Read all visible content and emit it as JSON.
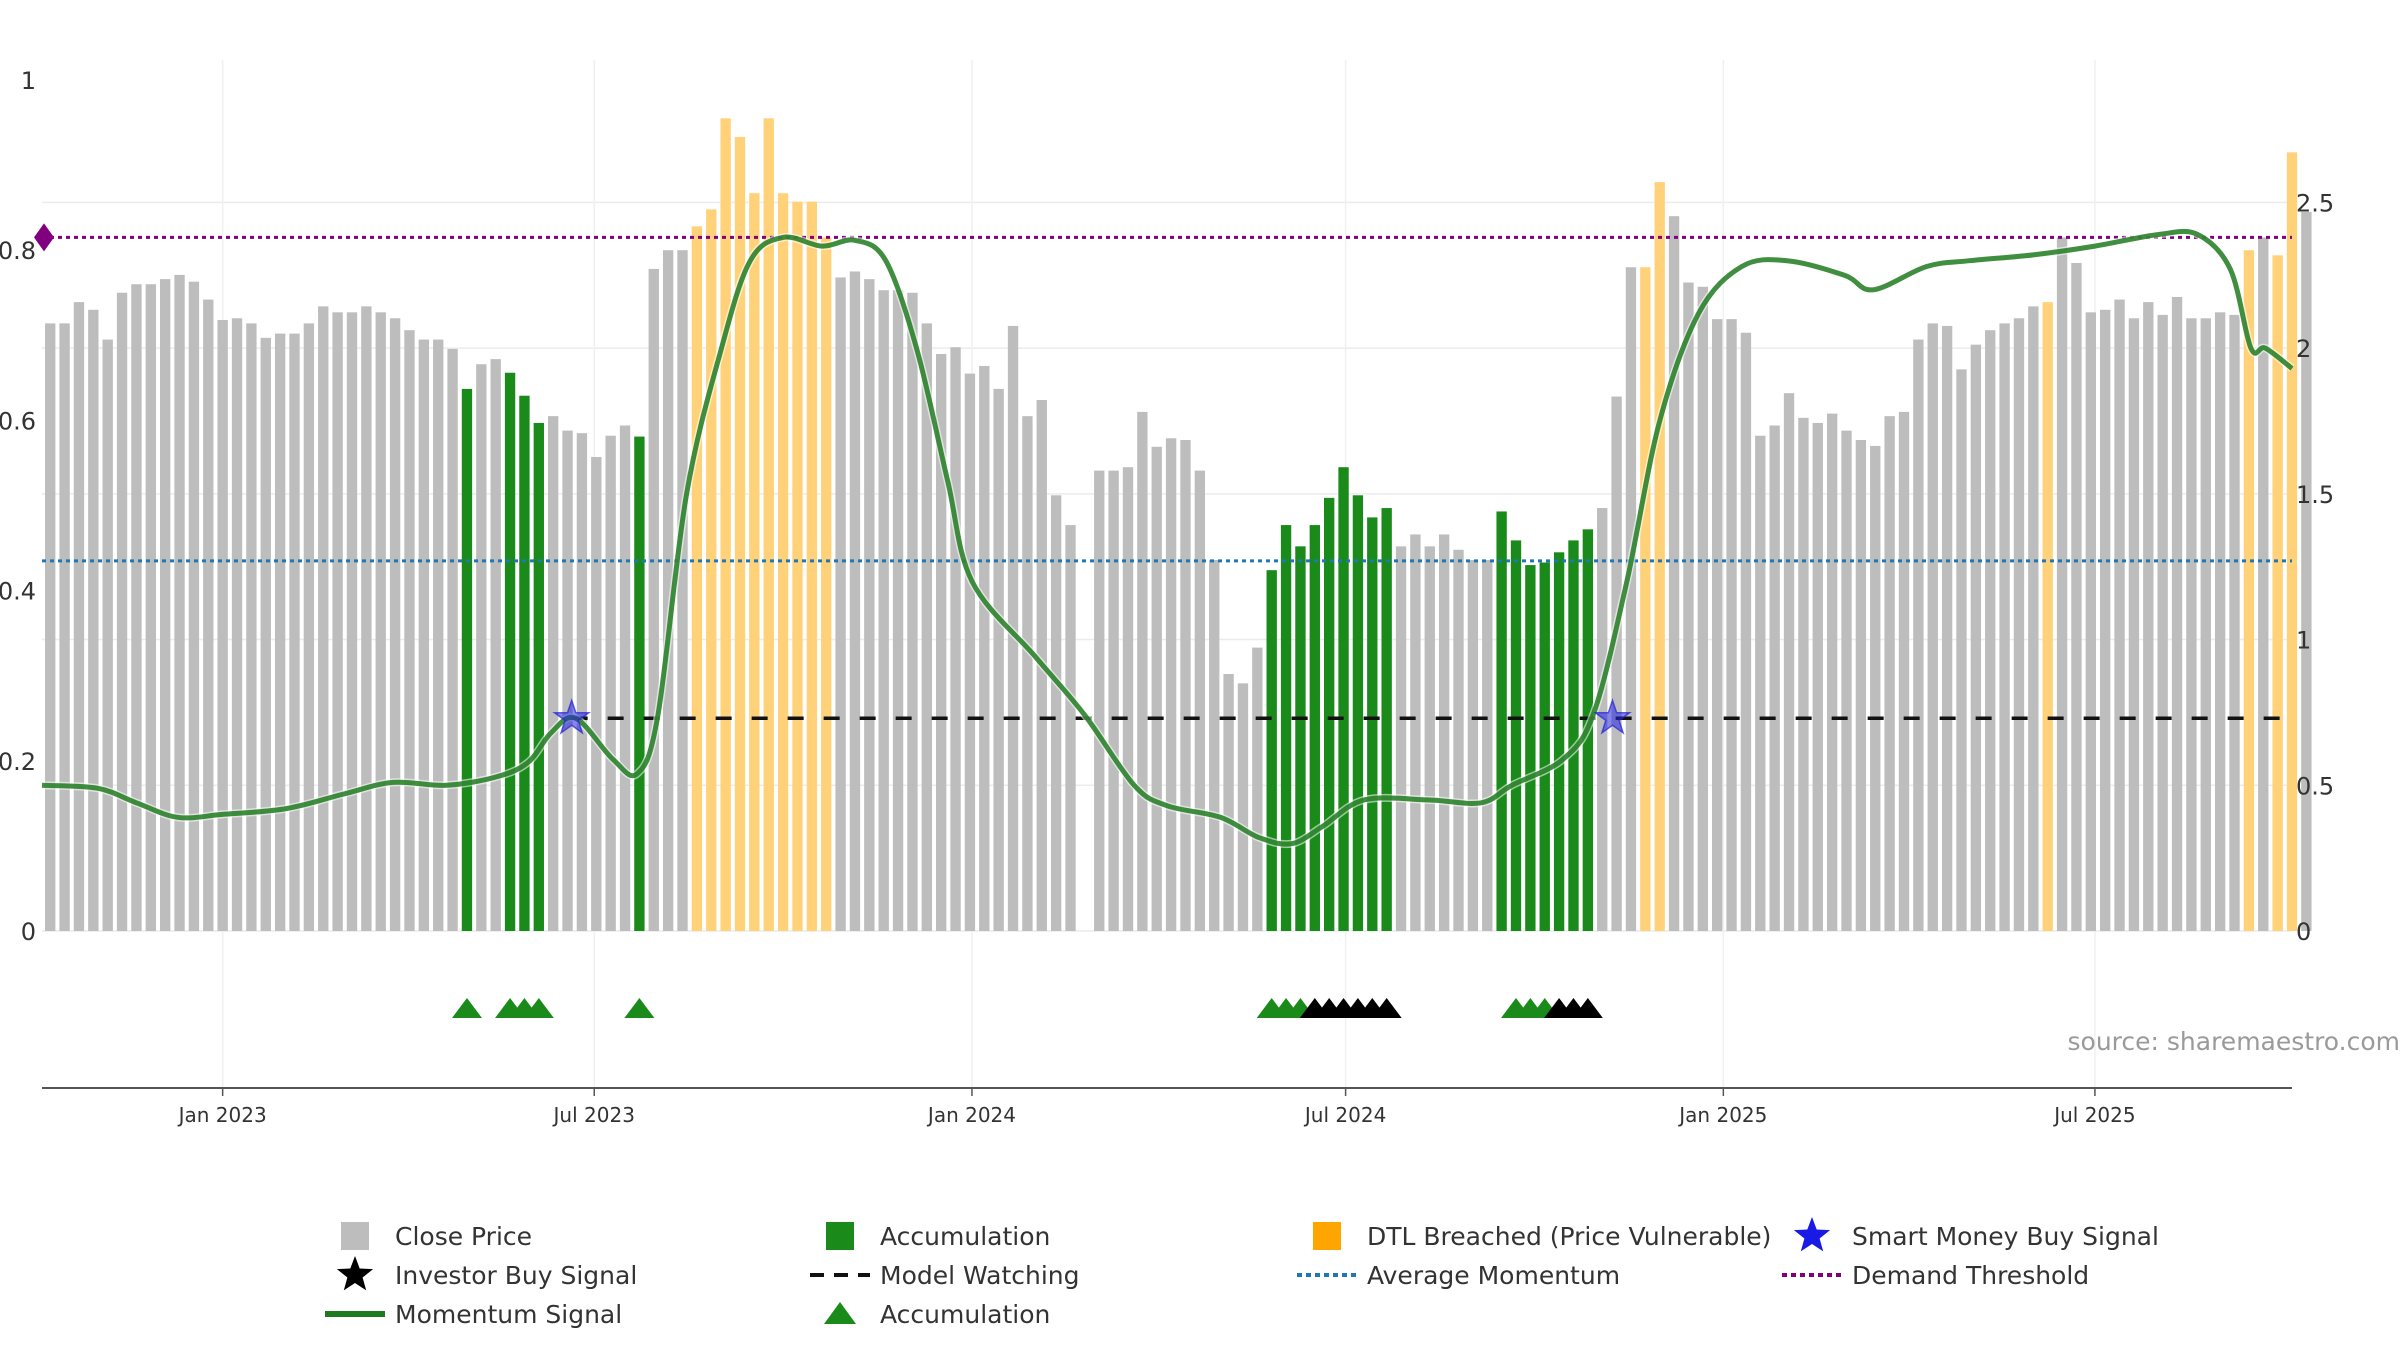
{
  "chart_data": {
    "type": "bar",
    "source_label": "source: sharemaestro.com",
    "left_axis": {
      "ylim": [
        0,
        1
      ],
      "ticks": [
        "0",
        "0.2",
        "0.4",
        "0.6",
        "0.8",
        "1"
      ]
    },
    "right_axis": {
      "ylim": [
        0,
        2.92
      ],
      "ticks": [
        "0",
        "0.5",
        "1",
        "1.5",
        "2",
        "2.5"
      ]
    },
    "x_axis": {
      "start_date": "2022-10-05",
      "end_date": "2025-10-05",
      "tick_labels": [
        {
          "date": "2023-01-01",
          "label": "Jan 2023"
        },
        {
          "date": "2023-07-01",
          "label": "Jul 2023"
        },
        {
          "date": "2024-01-01",
          "label": "Jan 2024"
        },
        {
          "date": "2024-07-01",
          "label": "Jul 2024"
        },
        {
          "date": "2025-01-01",
          "label": "Jan 2025"
        },
        {
          "date": "2025-07-01",
          "label": "Jul 2025"
        }
      ]
    },
    "close_price": {
      "name": "Close Price",
      "start_date": "2022-10-09",
      "interval_days": 7,
      "values": [
        0.714,
        0.714,
        0.739,
        0.73,
        0.695,
        0.75,
        0.76,
        0.76,
        0.766,
        0.771,
        0.763,
        0.742,
        0.718,
        0.72,
        0.714,
        0.697,
        0.702,
        0.702,
        0.714,
        0.734,
        0.727,
        0.727,
        0.734,
        0.727,
        0.72,
        0.706,
        0.695,
        0.695,
        0.684,
        0.637,
        0.666,
        0.672,
        0.656,
        0.629,
        0.597,
        0.605,
        0.588,
        0.585,
        0.557,
        0.582,
        0.594,
        0.581,
        0.778,
        0.8,
        0.8,
        0.828,
        0.848,
        0.955,
        0.933,
        0.867,
        0.955,
        0.867,
        0.857,
        0.857,
        0.815,
        0.768,
        0.775,
        0.766,
        0.753,
        0.753,
        0.75,
        0.714,
        0.678,
        0.686,
        0.655,
        0.664,
        0.637,
        0.711,
        0.605,
        0.624,
        0.512,
        0.477,
        0,
        0.541,
        0.541,
        0.545,
        0.61,
        0.569,
        0.579,
        0.577,
        0.541,
        0.436,
        0.302,
        0.291,
        0.333,
        0.424,
        0.477,
        0.452,
        0.477,
        0.509,
        0.545,
        0.512,
        0.486,
        0.497,
        0.452,
        0.466,
        0.452,
        0.466,
        0.448,
        0.436,
        0.436,
        0.493,
        0.459,
        0.43,
        0.433,
        0.445,
        0.459,
        0.472,
        0.497,
        0.628,
        0.78,
        0.78,
        0.88,
        0.84,
        0.762,
        0.757,
        0.719,
        0.719,
        0.703,
        0.582,
        0.594,
        0.632,
        0.603,
        0.597,
        0.608,
        0.588,
        0.577,
        0.57,
        0.605,
        0.61,
        0.695,
        0.714,
        0.711,
        0.66,
        0.689,
        0.706,
        0.714,
        0.72,
        0.734,
        0.739,
        0.815,
        0.785,
        0.727,
        0.73,
        0.742,
        0.72,
        0.739,
        0.724,
        0.745,
        0.72,
        0.72,
        0.727,
        0.724,
        0.8,
        0.815,
        0.794,
        0.915,
        0.845
      ]
    },
    "colors": {
      "close_price": "#bdbdbd",
      "accumulation": "#1a8a1a",
      "dtl_breached": "#ffd27a",
      "momentum": "#1e7a1e",
      "average_momentum": "#1f77b4",
      "demand_threshold": "#800080",
      "model_watching": "#111111",
      "smart_money": "#2222dd",
      "investor": "#000000"
    },
    "accumulation_ranges": [
      [
        29,
        29
      ],
      [
        32,
        32
      ],
      [
        33,
        33
      ],
      [
        34,
        34
      ],
      [
        41,
        41
      ],
      [
        85,
        93
      ],
      [
        101,
        107
      ]
    ],
    "dtl_breached_ranges": [
      [
        45,
        54
      ],
      [
        111,
        112
      ],
      [
        139,
        139
      ],
      [
        153,
        153
      ],
      [
        155,
        156
      ]
    ],
    "momentum_signal": {
      "name": "Momentum Signal",
      "points": [
        [
          "2022-10-05",
          0.5
        ],
        [
          "2022-11-01",
          0.49
        ],
        [
          "2022-11-20",
          0.44
        ],
        [
          "2022-12-10",
          0.39
        ],
        [
          "2023-01-01",
          0.4
        ],
        [
          "2023-02-01",
          0.42
        ],
        [
          "2023-03-01",
          0.47
        ],
        [
          "2023-03-25",
          0.51
        ],
        [
          "2023-04-20",
          0.5
        ],
        [
          "2023-05-15",
          0.53
        ],
        [
          "2023-05-30",
          0.58
        ],
        [
          "2023-06-10",
          0.68
        ],
        [
          "2023-06-22",
          0.73
        ],
        [
          "2023-07-10",
          0.59
        ],
        [
          "2023-07-22",
          0.54
        ],
        [
          "2023-08-01",
          0.74
        ],
        [
          "2023-08-15",
          1.5
        ],
        [
          "2023-09-01",
          2.0
        ],
        [
          "2023-09-15",
          2.3
        ],
        [
          "2023-10-01",
          2.38
        ],
        [
          "2023-10-20",
          2.35
        ],
        [
          "2023-11-05",
          2.37
        ],
        [
          "2023-11-20",
          2.3
        ],
        [
          "2023-12-05",
          2.0
        ],
        [
          "2023-12-20",
          1.55
        ],
        [
          "2024-01-01",
          1.2
        ],
        [
          "2024-02-01",
          0.94
        ],
        [
          "2024-02-25",
          0.74
        ],
        [
          "2024-03-20",
          0.5
        ],
        [
          "2024-04-05",
          0.43
        ],
        [
          "2024-05-01",
          0.39
        ],
        [
          "2024-05-20",
          0.32
        ],
        [
          "2024-06-05",
          0.3
        ],
        [
          "2024-06-20",
          0.36
        ],
        [
          "2024-07-10",
          0.45
        ],
        [
          "2024-08-10",
          0.45
        ],
        [
          "2024-09-05",
          0.44
        ],
        [
          "2024-09-20",
          0.5
        ],
        [
          "2024-10-15",
          0.59
        ],
        [
          "2024-10-30",
          0.75
        ],
        [
          "2024-11-15",
          1.2
        ],
        [
          "2024-12-01",
          1.75
        ],
        [
          "2024-12-20",
          2.12
        ],
        [
          "2025-01-10",
          2.28
        ],
        [
          "2025-02-01",
          2.3
        ],
        [
          "2025-03-01",
          2.25
        ],
        [
          "2025-03-15",
          2.2
        ],
        [
          "2025-04-10",
          2.28
        ],
        [
          "2025-05-01",
          2.3
        ],
        [
          "2025-06-01",
          2.32
        ],
        [
          "2025-07-01",
          2.35
        ],
        [
          "2025-08-01",
          2.39
        ],
        [
          "2025-08-20",
          2.39
        ],
        [
          "2025-09-05",
          2.27
        ],
        [
          "2025-09-15",
          2.0
        ],
        [
          "2025-09-22",
          2.0
        ],
        [
          "2025-10-05",
          1.93
        ]
      ]
    },
    "average_momentum": {
      "name": "Average Momentum",
      "value": 1.27
    },
    "demand_threshold": {
      "name": "Demand Threshold",
      "value": 2.38
    },
    "model_watching": {
      "name": "Model Watching",
      "value": 0.73,
      "start_date": "2023-06-20",
      "end_date": "2025-10-05"
    },
    "smart_money_buy_signals": {
      "name": "Smart Money Buy Signal",
      "points": [
        [
          "2023-06-20",
          0.73
        ],
        [
          "2024-11-08",
          0.73
        ]
      ]
    },
    "accumulation_markers": {
      "name": "Accumulation",
      "green_indices": [
        29,
        32,
        33,
        34,
        41,
        85,
        86,
        87,
        102,
        103,
        104
      ],
      "black_indices": [
        88,
        89,
        90,
        91,
        92,
        93,
        105,
        106,
        107
      ]
    },
    "legend": [
      {
        "label": "Close Price",
        "symbol": "square",
        "color": "#bdbdbd"
      },
      {
        "label": "Accumulation",
        "symbol": "square",
        "color": "#1a8a1a"
      },
      {
        "label": "DTL Breached (Price Vulnerable)",
        "symbol": "square",
        "color": "#ffa500"
      },
      {
        "label": "Smart Money Buy Signal",
        "symbol": "star",
        "color": "#1a1ae6"
      },
      {
        "label": "Investor Buy Signal",
        "symbol": "star",
        "color": "#000000"
      },
      {
        "label": "Model Watching",
        "symbol": "dash",
        "color": "#111111"
      },
      {
        "label": "Average Momentum",
        "symbol": "dot",
        "color": "#1f77b4"
      },
      {
        "label": "Demand Threshold",
        "symbol": "dot",
        "color": "#800080"
      },
      {
        "label": "Momentum Signal",
        "symbol": "line",
        "color": "#1e7a1e"
      },
      {
        "label": "Accumulation",
        "symbol": "triangle",
        "color": "#1a8a1a"
      }
    ]
  }
}
